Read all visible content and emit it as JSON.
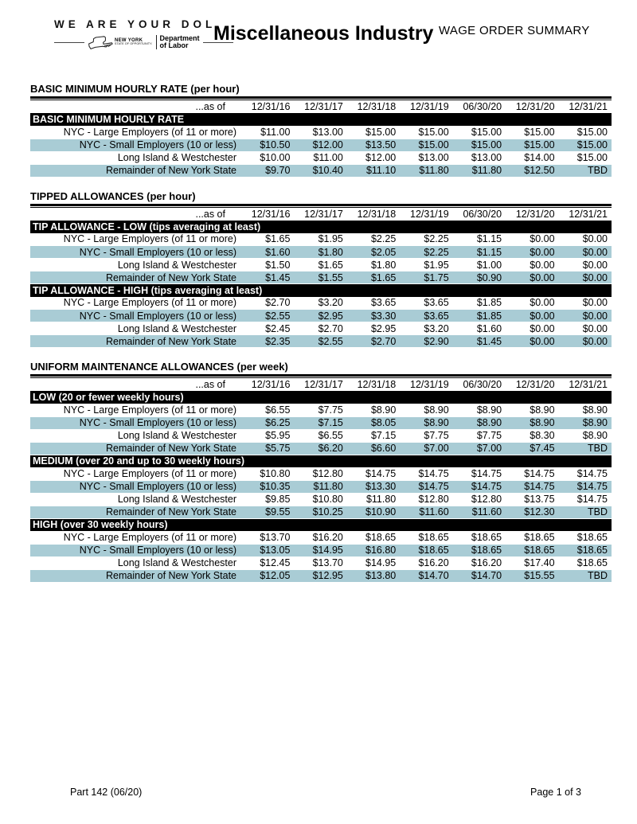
{
  "header": {
    "tagline": "WE ARE YOUR DOL",
    "logo": {
      "state_name": "NEW YORK",
      "state_motto": "STATE OF OPPORTUNITY.",
      "dept_line1": "Department",
      "dept_line2": "of Labor"
    },
    "title": "Miscellaneous Industry",
    "subtitle": "WAGE ORDER SUMMARY"
  },
  "columns": {
    "as_of_label": "...as of",
    "dates": [
      "12/31/16",
      "12/31/17",
      "12/31/18",
      "12/31/19",
      "06/30/20",
      "12/31/20",
      "12/31/21"
    ]
  },
  "sections": [
    {
      "title": "BASIC MINIMUM HOURLY RATE (per hour)",
      "groups": [
        {
          "banner": "BASIC MINIMUM HOURLY RATE",
          "rows": [
            {
              "label": "NYC - Large Employers (of 11 or more)",
              "values": [
                "$11.00",
                "$13.00",
                "$15.00",
                "$15.00",
                "$15.00",
                "$15.00",
                "$15.00"
              ]
            },
            {
              "label": "NYC - Small Employers (10 or less)",
              "values": [
                "$10.50",
                "$12.00",
                "$13.50",
                "$15.00",
                "$15.00",
                "$15.00",
                "$15.00"
              ]
            },
            {
              "label": "Long Island & Westchester",
              "values": [
                "$10.00",
                "$11.00",
                "$12.00",
                "$13.00",
                "$13.00",
                "$14.00",
                "$15.00"
              ]
            },
            {
              "label": "Remainder of New York State",
              "values": [
                "$9.70",
                "$10.40",
                "$11.10",
                "$11.80",
                "$11.80",
                "$12.50",
                "TBD"
              ]
            }
          ]
        }
      ]
    },
    {
      "title": "TIPPED ALLOWANCES (per hour)",
      "groups": [
        {
          "banner": "TIP ALLOWANCE - LOW (tips averaging at least)",
          "rows": [
            {
              "label": "NYC - Large Employers (of 11 or more)",
              "values": [
                "$1.65",
                "$1.95",
                "$2.25",
                "$2.25",
                "$1.15",
                "$0.00",
                "$0.00"
              ]
            },
            {
              "label": "NYC - Small Employers (10 or less)",
              "values": [
                "$1.60",
                "$1.80",
                "$2.05",
                "$2.25",
                "$1.15",
                "$0.00",
                "$0.00"
              ]
            },
            {
              "label": "Long Island & Westchester",
              "values": [
                "$1.50",
                "$1.65",
                "$1.80",
                "$1.95",
                "$1.00",
                "$0.00",
                "$0.00"
              ]
            },
            {
              "label": "Remainder of New York State",
              "values": [
                "$1.45",
                "$1.55",
                "$1.65",
                "$1.75",
                "$0.90",
                "$0.00",
                "$0.00"
              ]
            }
          ]
        },
        {
          "banner": "TIP ALLOWANCE - HIGH (tips averaging at least)",
          "rows": [
            {
              "label": "NYC - Large Employers (of 11 or more)",
              "values": [
                "$2.70",
                "$3.20",
                "$3.65",
                "$3.65",
                "$1.85",
                "$0.00",
                "$0.00"
              ]
            },
            {
              "label": "NYC - Small Employers (10 or less)",
              "values": [
                "$2.55",
                "$2.95",
                "$3.30",
                "$3.65",
                "$1.85",
                "$0.00",
                "$0.00"
              ]
            },
            {
              "label": "Long Island & Westchester",
              "values": [
                "$2.45",
                "$2.70",
                "$2.95",
                "$3.20",
                "$1.60",
                "$0.00",
                "$0.00"
              ]
            },
            {
              "label": "Remainder of New York State",
              "values": [
                "$2.35",
                "$2.55",
                "$2.70",
                "$2.90",
                "$1.45",
                "$0.00",
                "$0.00"
              ]
            }
          ]
        }
      ]
    },
    {
      "title": "UNIFORM MAINTENANCE ALLOWANCES (per week)",
      "groups": [
        {
          "banner": "LOW (20 or fewer weekly hours)",
          "rows": [
            {
              "label": "NYC - Large Employers (of 11 or more)",
              "values": [
                "$6.55",
                "$7.75",
                "$8.90",
                "$8.90",
                "$8.90",
                "$8.90",
                "$8.90"
              ]
            },
            {
              "label": "NYC - Small Employers (10 or less)",
              "values": [
                "$6.25",
                "$7.15",
                "$8.05",
                "$8.90",
                "$8.90",
                "$8.90",
                "$8.90"
              ]
            },
            {
              "label": "Long Island & Westchester",
              "values": [
                "$5.95",
                "$6.55",
                "$7.15",
                "$7.75",
                "$7.75",
                "$8.30",
                "$8.90"
              ]
            },
            {
              "label": "Remainder of New York State",
              "values": [
                "$5.75",
                "$6.20",
                "$6.60",
                "$7.00",
                "$7.00",
                "$7.45",
                "TBD"
              ]
            }
          ]
        },
        {
          "banner": "MEDIUM (over 20 and up to 30 weekly hours)",
          "rows": [
            {
              "label": "NYC - Large Employers (of 11 or more)",
              "values": [
                "$10.80",
                "$12.80",
                "$14.75",
                "$14.75",
                "$14.75",
                "$14.75",
                "$14.75"
              ]
            },
            {
              "label": "NYC - Small Employers (10 or less)",
              "values": [
                "$10.35",
                "$11.80",
                "$13.30",
                "$14.75",
                "$14.75",
                "$14.75",
                "$14.75"
              ]
            },
            {
              "label": "Long Island & Westchester",
              "values": [
                "$9.85",
                "$10.80",
                "$11.80",
                "$12.80",
                "$12.80",
                "$13.75",
                "$14.75"
              ]
            },
            {
              "label": "Remainder of New York State",
              "values": [
                "$9.55",
                "$10.25",
                "$10.90",
                "$11.60",
                "$11.60",
                "$12.30",
                "TBD"
              ]
            }
          ]
        },
        {
          "banner": "HIGH (over 30 weekly hours)",
          "rows": [
            {
              "label": "NYC - Large Employers (of 11 or more)",
              "values": [
                "$13.70",
                "$16.20",
                "$18.65",
                "$18.65",
                "$18.65",
                "$18.65",
                "$18.65"
              ]
            },
            {
              "label": "NYC - Small Employers (10 or less)",
              "values": [
                "$13.05",
                "$14.95",
                "$16.80",
                "$18.65",
                "$18.65",
                "$18.65",
                "$18.65"
              ]
            },
            {
              "label": "Long Island & Westchester",
              "values": [
                "$12.45",
                "$13.70",
                "$14.95",
                "$16.20",
                "$16.20",
                "$17.40",
                "$18.65"
              ]
            },
            {
              "label": "Remainder of New York State",
              "values": [
                "$12.05",
                "$12.95",
                "$13.80",
                "$14.70",
                "$14.70",
                "$15.55",
                "TBD"
              ]
            }
          ]
        }
      ]
    }
  ],
  "footer": {
    "left": "Part 142 (06/20)",
    "right": "Page 1 of 3"
  },
  "colors": {
    "row_alt": "#a9ccd5",
    "banner_bg": "#000000",
    "banner_text": "#ffffff"
  }
}
